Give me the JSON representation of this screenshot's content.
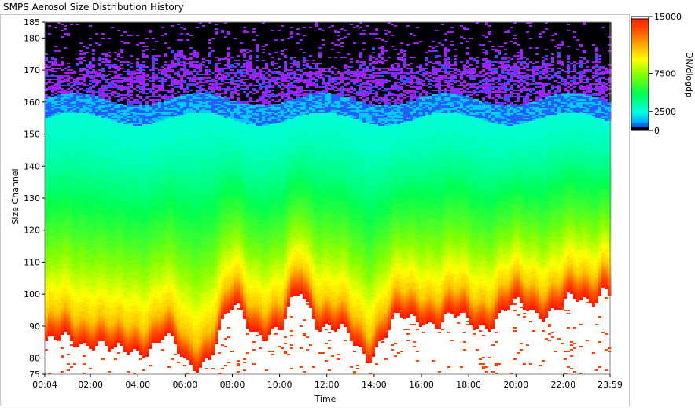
{
  "window": {
    "title": "SMPS Aerosol Size Distribution History"
  },
  "chart_data": {
    "type": "heatmap",
    "title": "SMPS Aerosol Size Distribution History",
    "xlabel": "Time",
    "ylabel": "Size Channel",
    "colorbar_label": "DN/dlogdp",
    "x_ticks": [
      "00:04",
      "02:00",
      "04:00",
      "06:00",
      "08:00",
      "10:00",
      "12:00",
      "14:00",
      "16:00",
      "18:00",
      "20:00",
      "22:00",
      "23:59"
    ],
    "x_tick_minutes": [
      4,
      120,
      240,
      360,
      480,
      600,
      720,
      840,
      960,
      1080,
      1200,
      1320,
      1439
    ],
    "y_ticks": [
      75,
      80,
      90,
      100,
      110,
      120,
      130,
      140,
      150,
      160,
      170,
      180,
      185
    ],
    "y_range": [
      75,
      185
    ],
    "x_range_minutes": [
      4,
      1439
    ],
    "colorbar_ticks": [
      "0",
      "2500",
      "7500",
      "15000"
    ],
    "colorbar_values": [
      0,
      2500,
      7500,
      15000
    ],
    "colorbar_range": [
      0,
      15000
    ],
    "colors": {
      "low": "#0000ff",
      "cyan": "#00ffff",
      "green": "#00ff00",
      "yellow": "#ffff00",
      "orange": "#ff9000",
      "high": "#ff2000",
      "saturated": "#ffffff",
      "noise": "#a020ff",
      "background_top": "#000000"
    },
    "profile": {
      "description_minutes": [
        4,
        60,
        120,
        180,
        240,
        300,
        360,
        420,
        480,
        540,
        600,
        650,
        700,
        760,
        820,
        880,
        940,
        960,
        1000,
        1080,
        1140,
        1200,
        1260,
        1320,
        1380,
        1420,
        1439
      ],
      "peak_channel_top": [
        92,
        93,
        95,
        88,
        92,
        94,
        86,
        90,
        103,
        98,
        95,
        110,
        100,
        94,
        90,
        98,
        100,
        102,
        100,
        99,
        101,
        103,
        104,
        104,
        106,
        112,
        109
      ]
    }
  }
}
